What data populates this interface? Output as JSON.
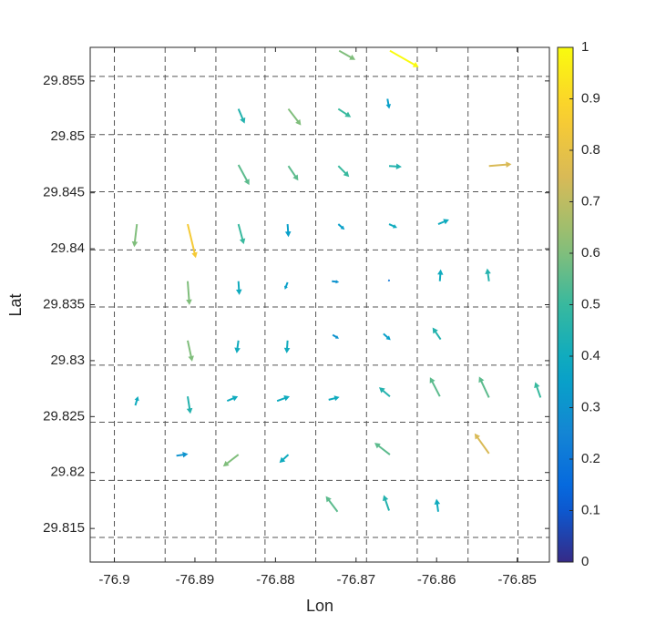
{
  "chart_data": {
    "type": "quiver",
    "xlabel": "Lon",
    "ylabel": "Lat",
    "xlim": [
      -76.903,
      -76.846
    ],
    "ylim": [
      29.812,
      29.858
    ],
    "xticks": [
      -76.9,
      -76.89,
      -76.88,
      -76.87,
      -76.86,
      -76.85
    ],
    "yticks": [
      29.815,
      29.82,
      29.825,
      29.83,
      29.835,
      29.84,
      29.845,
      29.85,
      29.855
    ],
    "dashed_x": [
      -76.9,
      -76.8937,
      -76.8874,
      -76.8813,
      -76.875,
      -76.8687,
      -76.8624,
      -76.8561,
      -76.8499
    ],
    "dashed_y": [
      29.8554,
      29.8502,
      29.8451,
      29.8399,
      29.8348,
      29.8296,
      29.8245,
      29.8193,
      29.8142
    ],
    "colormap": "parula",
    "clim": [
      0,
      1
    ],
    "colorbar_ticks": [
      0,
      0.1,
      0.2,
      0.3,
      0.4,
      0.5,
      0.6,
      0.7,
      0.8,
      0.9,
      1
    ],
    "x": [
      -76.8721,
      -76.8658,
      -76.8846,
      -76.8784,
      -76.8722,
      -76.8661,
      -76.8846,
      -76.8784,
      -76.8722,
      -76.8659,
      -76.8535,
      -76.8972,
      -76.8909,
      -76.8846,
      -76.8785,
      -76.8722,
      -76.8659,
      -76.8598,
      -76.8909,
      -76.8846,
      -76.8785,
      -76.873,
      -76.866,
      -76.8596,
      -76.8535,
      -76.8909,
      -76.8846,
      -76.8785,
      -76.8729,
      -76.8666,
      -76.8595,
      -76.8974,
      -76.8909,
      -76.886,
      -76.8798,
      -76.8734,
      -76.8658,
      -76.8596,
      -76.8535,
      -76.8471,
      -76.8923,
      -76.8846,
      -76.8784,
      -76.8658,
      -76.8535,
      -76.8723,
      -76.8659,
      -76.8598
    ],
    "y": [
      29.8577,
      29.8577,
      29.8525,
      29.8525,
      29.8525,
      29.8534,
      29.8475,
      29.8474,
      29.8474,
      29.8474,
      29.8474,
      29.8422,
      29.8422,
      29.8422,
      29.8422,
      29.8422,
      29.8422,
      29.8422,
      29.8371,
      29.8371,
      29.837,
      29.8371,
      29.8372,
      29.8371,
      29.8371,
      29.8318,
      29.8318,
      29.8318,
      29.8323,
      29.8324,
      29.8319,
      29.826,
      29.8268,
      29.8264,
      29.8264,
      29.8265,
      29.8268,
      29.8268,
      29.8267,
      29.8267,
      29.8215,
      29.8216,
      29.8216,
      29.8216,
      29.8217,
      29.8165,
      29.8166,
      29.8165
    ],
    "u": [
      0.00202,
      0.00359,
      0.00078,
      0.00157,
      0.00157,
      0.00022,
      0.00135,
      0.00123,
      0.00135,
      0.00157,
      0.0028,
      -0.00034,
      0.00101,
      0.00067,
      0.00011,
      0.00078,
      0.00101,
      0.00135,
      0.00022,
      0.00011,
      -0.00034,
      0.0009,
      0.00022,
      0.00011,
      -0.00022,
      0.00056,
      -0.00022,
      -0.00011,
      0.00078,
      0.0009,
      -0.00101,
      0.00034,
      0.00034,
      0.00135,
      0.00157,
      0.00135,
      -0.00135,
      -0.00123,
      -0.00123,
      -0.00067,
      0.00146,
      -0.00191,
      -0.00112,
      -0.00191,
      -0.00179,
      -0.00146,
      -0.00067,
      -0.00022
    ],
    "v": [
      -0.00082,
      -0.00147,
      -0.00131,
      -0.00147,
      -0.00074,
      -0.0009,
      -0.0018,
      -0.00131,
      -0.00098,
      -8e-05,
      0.00016,
      -0.00205,
      -0.00303,
      -0.0018,
      -0.00115,
      -0.00049,
      -0.00033,
      0.00041,
      -0.00213,
      -0.00123,
      -0.00065,
      -8e-05,
      -8e-05,
      0.00106,
      0.00115,
      -0.00188,
      -0.00115,
      -0.00115,
      -0.00033,
      -0.00057,
      0.00106,
      0.00082,
      -0.00155,
      0.00041,
      0.00041,
      0.00025,
      0.00082,
      0.00172,
      0.00188,
      0.00139,
      0.00016,
      -0.00106,
      -0.00074,
      0.00106,
      0.0018,
      0.00139,
      0.00139,
      0.00115
    ],
    "color_values": [
      0.6,
      1.0,
      0.45,
      0.6,
      0.5,
      0.35,
      0.55,
      0.55,
      0.5,
      0.45,
      0.75,
      0.6,
      0.85,
      0.5,
      0.35,
      0.35,
      0.4,
      0.4,
      0.6,
      0.4,
      0.35,
      0.3,
      0.2,
      0.4,
      0.45,
      0.6,
      0.4,
      0.4,
      0.3,
      0.35,
      0.45,
      0.4,
      0.45,
      0.4,
      0.4,
      0.4,
      0.45,
      0.55,
      0.55,
      0.5,
      0.3,
      0.6,
      0.4,
      0.55,
      0.75,
      0.55,
      0.45,
      0.4
    ]
  }
}
